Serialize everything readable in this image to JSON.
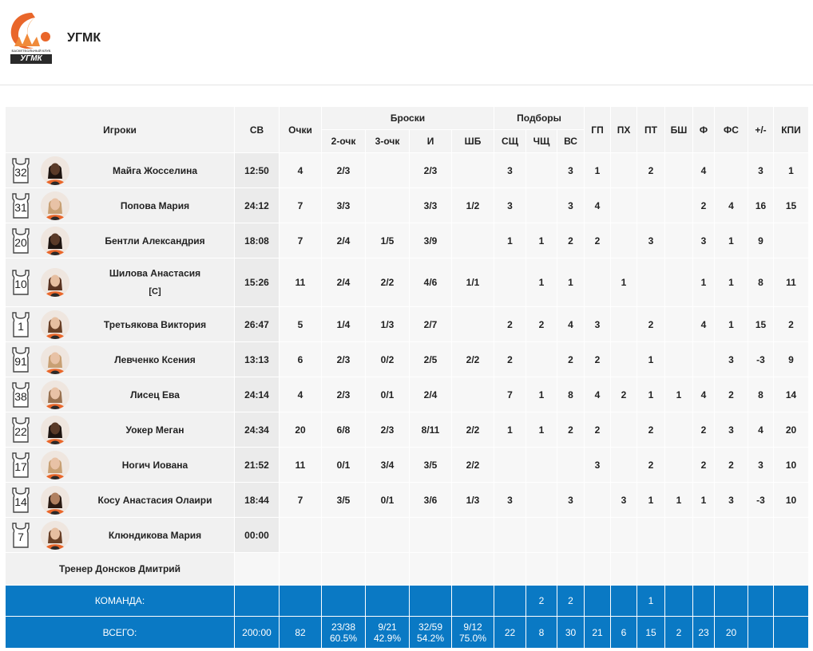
{
  "team": {
    "name": "УГМК",
    "logo_text": "УГМК",
    "logo_small_text": "БАСКЕТБОЛЬНЫЙ КЛУБ"
  },
  "colors": {
    "accent": "#0a79c4",
    "logo_orange": "#e9662a"
  },
  "headers": {
    "players": "Игроки",
    "minutes": "СВ",
    "points": "Очки",
    "shots": "Броски",
    "two_pt": "2-очк",
    "three_pt": "3-очк",
    "fg": "И",
    "ft": "ШБ",
    "rebounds": "Подборы",
    "def_reb": "СЩ",
    "off_reb": "ЧЩ",
    "tot_reb": "ВС",
    "assists": "ГП",
    "turnovers": "ПХ",
    "steals": "ПТ",
    "blocks": "БШ",
    "fouls": "Ф",
    "fouls_drawn": "ФС",
    "plus_minus": "+/-",
    "efficiency": "КПИ"
  },
  "players": [
    {
      "number": "32",
      "name": "Майга Жосселина",
      "role": "",
      "skin": "#5a3a28",
      "hair": "#1e1410",
      "cells": [
        "12:50",
        "4",
        "2/3",
        "",
        "2/3",
        "",
        "3",
        "",
        "3",
        "1",
        "",
        "2",
        "",
        "4",
        "",
        "3",
        "1"
      ]
    },
    {
      "number": "31",
      "name": "Попова Мария",
      "role": "",
      "skin": "#e8c2a6",
      "hair": "#c8a074",
      "cells": [
        "24:12",
        "7",
        "3/3",
        "",
        "3/3",
        "1/2",
        "3",
        "",
        "3",
        "4",
        "",
        "",
        "",
        "2",
        "4",
        "16",
        "15"
      ]
    },
    {
      "number": "20",
      "name": "Бентли Александрия",
      "role": "",
      "skin": "#5a3a28",
      "hair": "#1e1410",
      "cells": [
        "18:08",
        "7",
        "2/4",
        "1/5",
        "3/9",
        "",
        "1",
        "1",
        "2",
        "2",
        "",
        "3",
        "",
        "3",
        "1",
        "9",
        ""
      ]
    },
    {
      "number": "10",
      "name": "Шилова Анастасия",
      "role": "[C]",
      "skin": "#e6bea0",
      "hair": "#5a3422",
      "cells": [
        "15:26",
        "11",
        "2/4",
        "2/2",
        "4/6",
        "1/1",
        "",
        "1",
        "1",
        "",
        "1",
        "",
        "",
        "1",
        "1",
        "8",
        "11"
      ]
    },
    {
      "number": "1",
      "name": "Третьякова Виктория",
      "role": "",
      "skin": "#e6bea0",
      "hair": "#6a4026",
      "cells": [
        "26:47",
        "5",
        "1/4",
        "1/3",
        "2/7",
        "",
        "2",
        "2",
        "4",
        "3",
        "",
        "2",
        "",
        "4",
        "1",
        "15",
        "2"
      ]
    },
    {
      "number": "91",
      "name": "Левченко Ксения",
      "role": "",
      "skin": "#e8c2a6",
      "hair": "#c8a074",
      "cells": [
        "13:13",
        "6",
        "2/3",
        "0/2",
        "2/5",
        "2/2",
        "2",
        "",
        "2",
        "2",
        "",
        "1",
        "",
        "",
        "3",
        "-3",
        "9"
      ]
    },
    {
      "number": "38",
      "name": "Лисец Ева",
      "role": "",
      "skin": "#e8c2a6",
      "hair": "#9a7250",
      "cells": [
        "24:14",
        "4",
        "2/3",
        "0/1",
        "2/4",
        "",
        "7",
        "1",
        "8",
        "4",
        "2",
        "1",
        "1",
        "4",
        "2",
        "8",
        "14"
      ]
    },
    {
      "number": "22",
      "name": "Уокер Меган",
      "role": "",
      "skin": "#5a3a28",
      "hair": "#1e1410",
      "cells": [
        "24:34",
        "20",
        "6/8",
        "2/3",
        "8/11",
        "2/2",
        "1",
        "1",
        "2",
        "2",
        "",
        "2",
        "",
        "2",
        "3",
        "4",
        "20"
      ]
    },
    {
      "number": "17",
      "name": "Ногич Иована",
      "role": "",
      "skin": "#e8c2a6",
      "hair": "#c8a074",
      "cells": [
        "21:52",
        "11",
        "0/1",
        "3/4",
        "3/5",
        "2/2",
        "",
        "",
        "",
        "3",
        "",
        "2",
        "",
        "2",
        "2",
        "3",
        "10"
      ]
    },
    {
      "number": "14",
      "name": "Косу Анастасия Олаири",
      "role": "",
      "skin": "#b08060",
      "hair": "#2a1a12",
      "cells": [
        "18:44",
        "7",
        "3/5",
        "0/1",
        "3/6",
        "1/3",
        "3",
        "",
        "3",
        "",
        "3",
        "1",
        "1",
        "1",
        "3",
        "-3",
        "10"
      ]
    },
    {
      "number": "7",
      "name": "Клюндикова Мария",
      "role": "",
      "skin": "#e6bea0",
      "hair": "#6a4026",
      "cells": [
        "00:00",
        "",
        "",
        "",
        "",
        "",
        "",
        "",
        "",
        "",
        "",
        "",
        "",
        "",
        "",
        "",
        ""
      ]
    }
  ],
  "coach": {
    "label": "Тренер Донсков Дмитрий"
  },
  "team_row": {
    "label": "КОМАНДА:",
    "cells": [
      "",
      "",
      "",
      "",
      "",
      "",
      "",
      "2",
      "2",
      "",
      "",
      "1",
      "",
      "",
      "",
      "",
      ""
    ]
  },
  "total_row": {
    "label": "ВСЕГО:",
    "cells": [
      "200:00",
      "82",
      "23/38\n60.5%",
      "9/21\n42.9%",
      "32/59\n54.2%",
      "9/12\n75.0%",
      "22",
      "8",
      "30",
      "21",
      "6",
      "15",
      "2",
      "23",
      "20",
      "",
      ""
    ]
  }
}
